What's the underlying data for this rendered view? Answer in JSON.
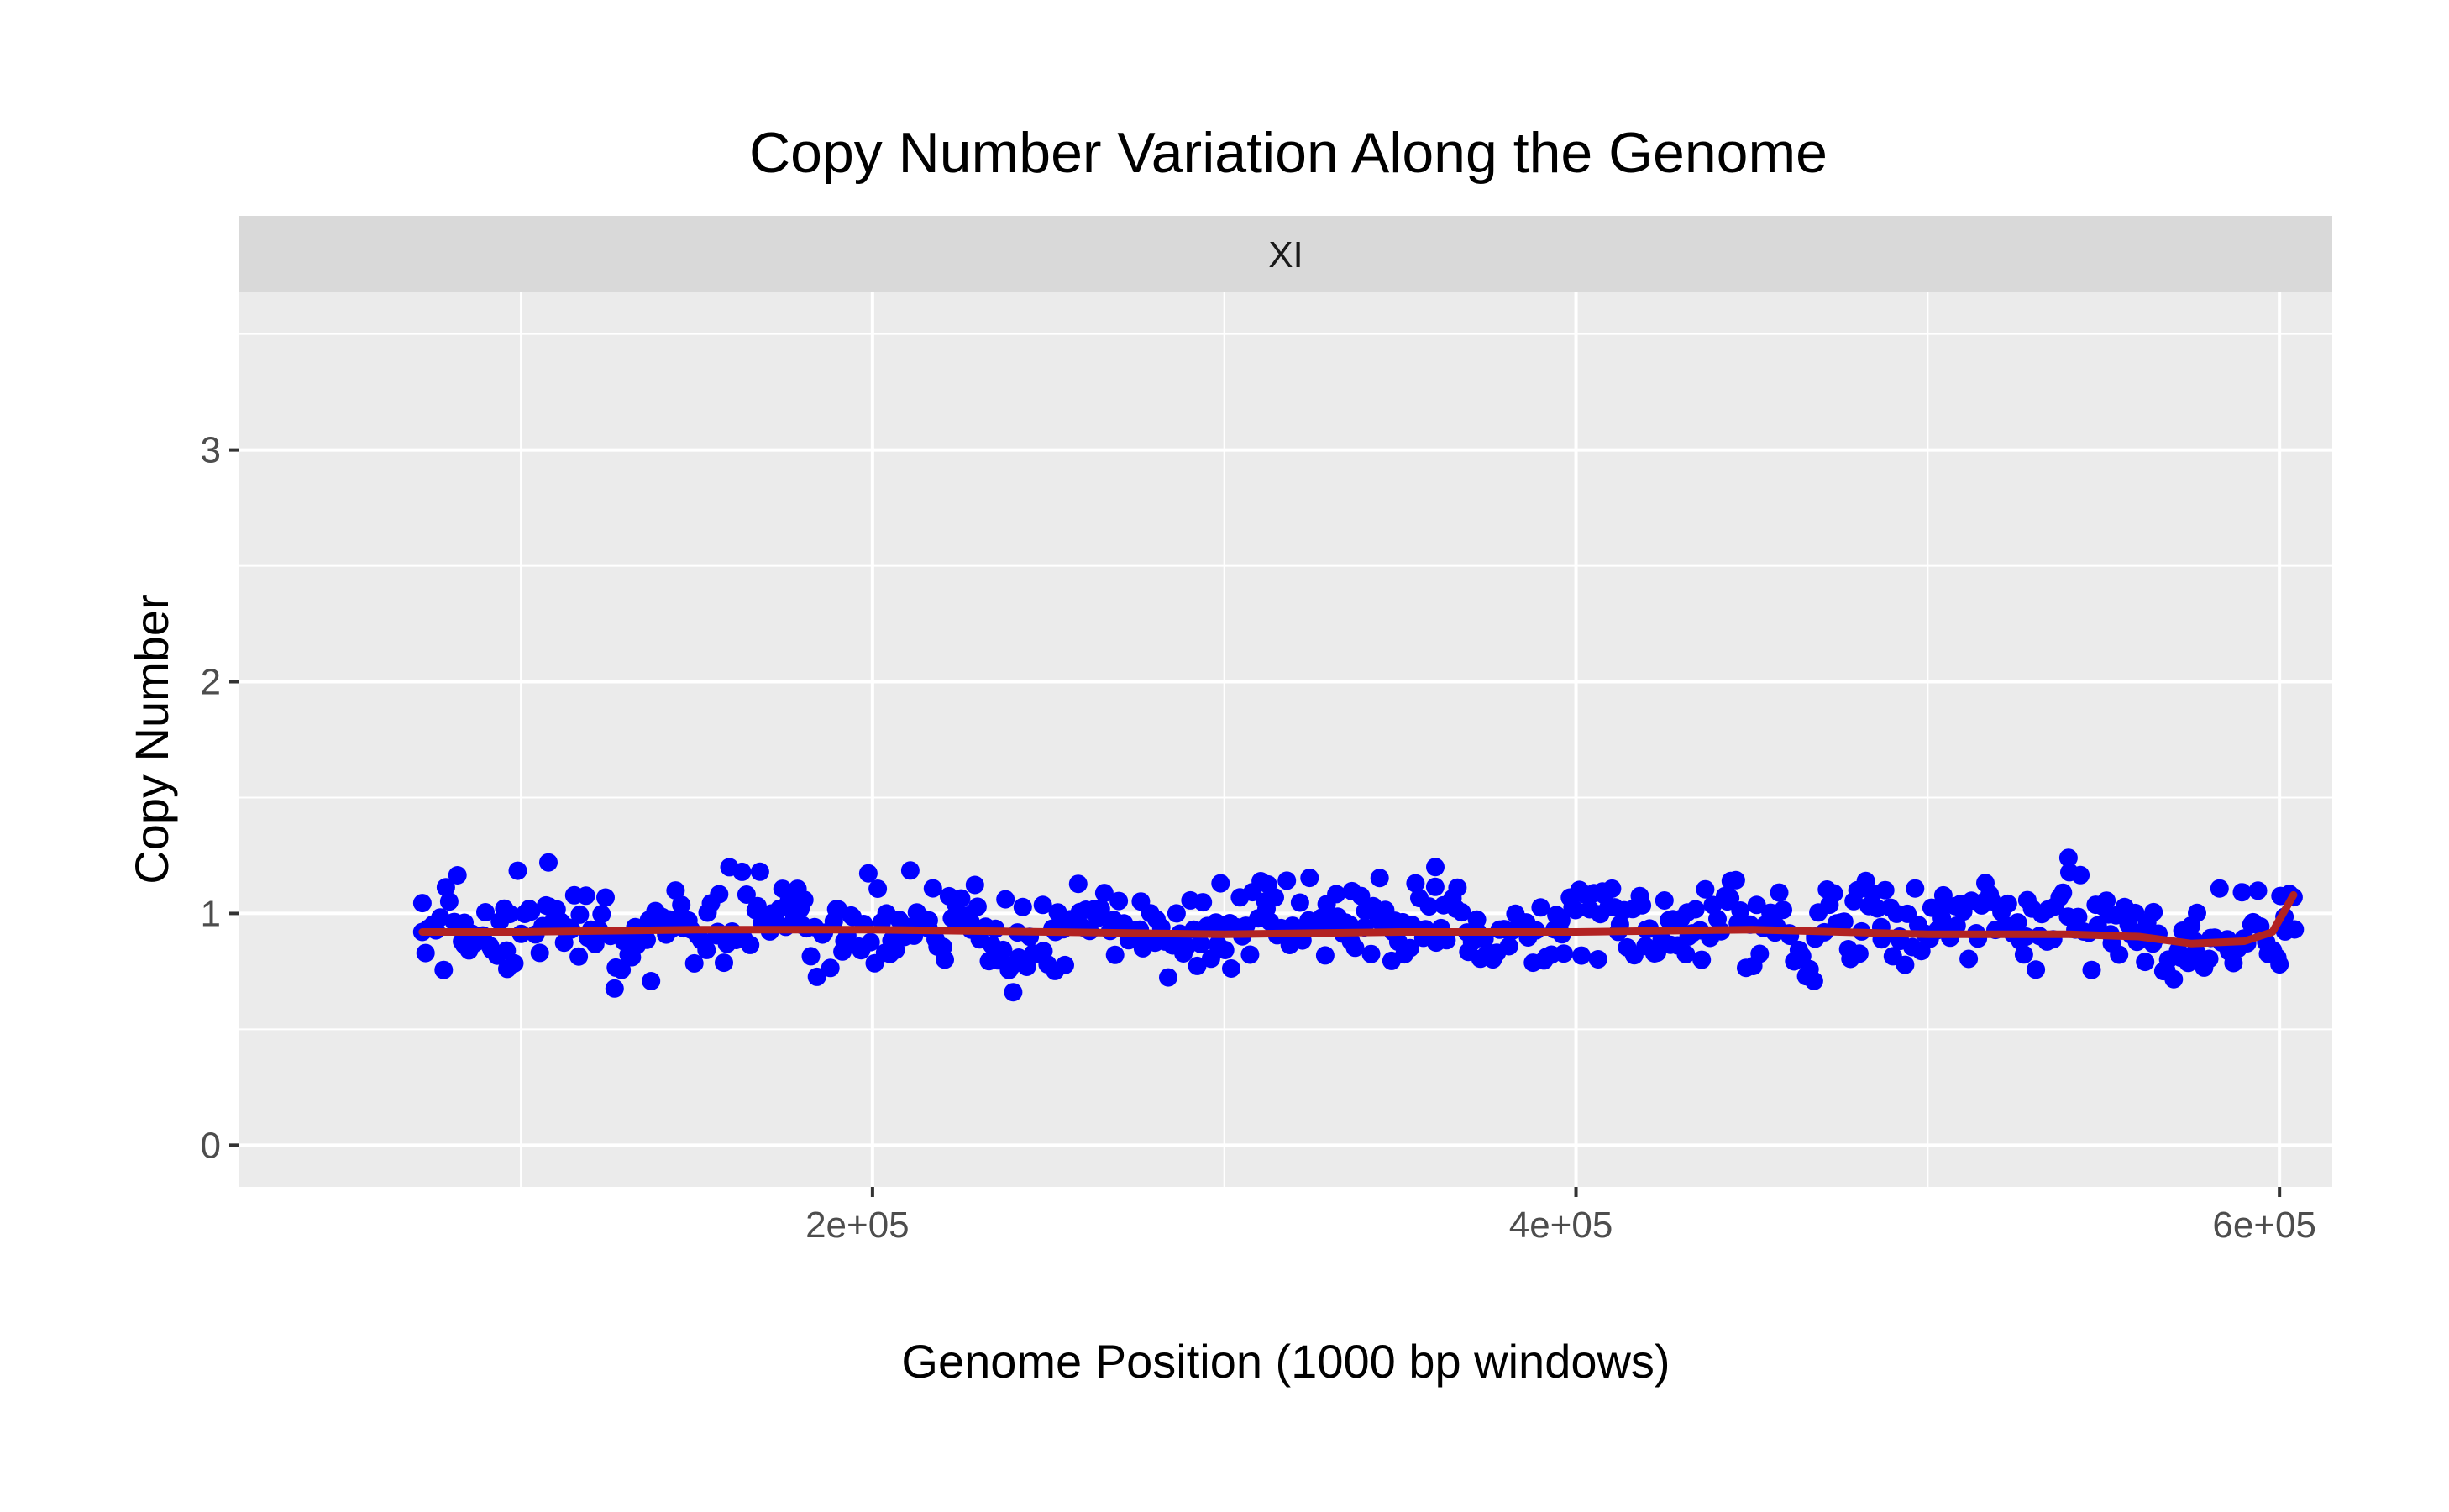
{
  "chart_data": {
    "type": "scatter",
    "title": "Copy Number Variation Along the Genome",
    "xlabel": "Genome Position (1000 bp windows)",
    "ylabel": "Copy Number",
    "facet_label": "XI",
    "xlim": [
      20000,
      615000
    ],
    "ylim": [
      -0.18,
      3.68
    ],
    "x_ticks": [
      200000,
      400000,
      600000
    ],
    "x_tick_labels": [
      "2e+05",
      "4e+05",
      "6e+05"
    ],
    "x_minor_grid": [
      100000,
      300000,
      500000
    ],
    "y_ticks": [
      0,
      1,
      2,
      3
    ],
    "y_tick_labels": [
      "0",
      "1",
      "2",
      "3"
    ],
    "y_minor_grid": [
      0.5,
      1.5,
      2.5,
      3.5
    ],
    "x_range_of_points": [
      72000,
      604000
    ],
    "point_count": 530,
    "point_color": "#0000ff",
    "trend_color": "#b22222",
    "panel_background": "#ebebeb",
    "strip_background": "#d9d9d9",
    "grid": true,
    "series": [
      {
        "style": "points",
        "x": [
          72000,
          84000,
          96000,
          108000,
          120000,
          132000,
          144000,
          156000,
          168000,
          180000,
          192000,
          204000,
          216000,
          228000,
          240000,
          252000,
          264000,
          276000,
          288000,
          300000,
          312000,
          324000,
          336000,
          348000,
          360000,
          372000,
          384000,
          396000,
          408000,
          420000,
          432000,
          444000,
          456000,
          468000,
          480000,
          492000,
          504000,
          516000,
          528000,
          540000,
          552000,
          564000,
          576000,
          588000,
          600000,
          604000
        ],
        "y": [
          0.92,
          0.96,
          0.84,
          1.03,
          0.93,
          0.9,
          0.97,
          0.92,
          1.18,
          0.95,
          0.88,
          1.0,
          0.97,
          0.93,
          0.66,
          0.92,
          0.98,
          0.93,
          0.89,
          0.95,
          1.02,
          0.97,
          0.88,
          0.92,
          1.2,
          0.92,
          0.95,
          0.91,
          1.08,
          0.93,
          0.9,
          1.14,
          0.95,
          0.9,
          1.1,
          0.9,
          0.98,
          1.05,
          0.9,
          1.24,
          0.91,
          0.87,
          0.88,
          0.85,
          0.78,
          1.07
        ]
      },
      {
        "style": "line",
        "name": "",
        "x": [
          72000,
          100000,
          150000,
          200000,
          250000,
          300000,
          350000,
          400000,
          450000,
          500000,
          540000,
          560000,
          575000,
          590000,
          598000,
          604000
        ],
        "y": [
          0.92,
          0.92,
          0.93,
          0.93,
          0.92,
          0.91,
          0.92,
          0.92,
          0.93,
          0.91,
          0.91,
          0.9,
          0.87,
          0.88,
          0.92,
          1.08
        ]
      }
    ]
  }
}
